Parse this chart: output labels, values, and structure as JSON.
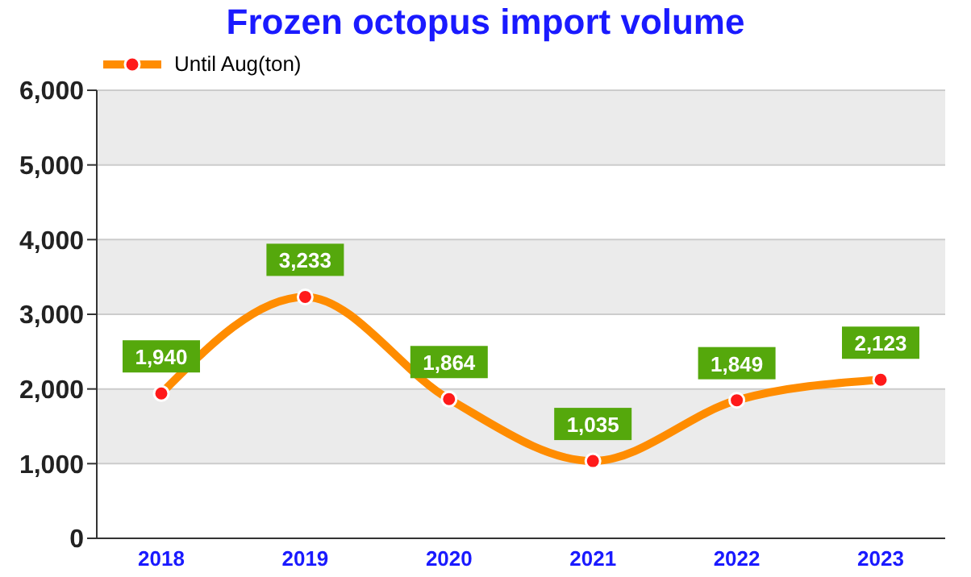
{
  "chart_data": {
    "type": "line",
    "title": "Frozen octopus import volume",
    "categories": [
      "2018",
      "2019",
      "2020",
      "2021",
      "2022",
      "2023"
    ],
    "series": [
      {
        "name": "Until Aug(ton)",
        "color": "#ff8c00",
        "values": [
          1940,
          3233,
          1864,
          1035,
          1849,
          2123
        ],
        "value_labels": [
          "1,940",
          "3,233",
          "1,864",
          "1,035",
          "1,849",
          "2,123"
        ]
      }
    ],
    "ylim": [
      0,
      6000
    ],
    "yticks": [
      0,
      {
        "value": 1000,
        "label": "1,000"
      },
      {
        "value": 2000,
        "label": "2,000"
      },
      {
        "value": 3000,
        "label": "3,000"
      },
      {
        "value": 4000,
        "label": "4,000"
      },
      {
        "value": 5000,
        "label": "5,000"
      },
      {
        "value": 6000,
        "label": "6,000"
      }
    ],
    "grid": "y",
    "legend": "top left",
    "marker": "circle",
    "line_style": "solid"
  }
}
